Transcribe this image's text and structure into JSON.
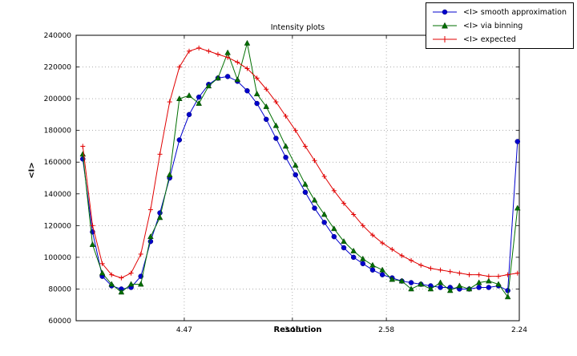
{
  "chart_data": {
    "type": "line",
    "title": "Intensity plots",
    "xlabel": "Resolution",
    "ylabel": "<I>",
    "grid": true,
    "grid_style": "dotted",
    "legend_position": "upper right, outside plot top corner",
    "ylim": [
      60000,
      240000
    ],
    "yticks": [
      60000,
      80000,
      100000,
      120000,
      140000,
      160000,
      180000,
      200000,
      220000,
      240000
    ],
    "xticks": [
      {
        "label": "4.47",
        "pos": 0.244
      },
      {
        "label": "3.16",
        "pos": 0.488
      },
      {
        "label": "2.58",
        "pos": 0.7
      },
      {
        "label": "2.24",
        "pos": 1.0
      }
    ],
    "x_axis_note": "x values are fractional positions across plot; resolution (Angstrom) decreases left to right",
    "x": [
      0.015,
      0.037,
      0.059,
      0.08,
      0.102,
      0.124,
      0.146,
      0.168,
      0.189,
      0.211,
      0.233,
      0.255,
      0.277,
      0.299,
      0.32,
      0.342,
      0.364,
      0.386,
      0.408,
      0.429,
      0.451,
      0.473,
      0.495,
      0.517,
      0.538,
      0.56,
      0.582,
      0.604,
      0.626,
      0.647,
      0.669,
      0.691,
      0.713,
      0.735,
      0.756,
      0.778,
      0.8,
      0.822,
      0.844,
      0.865,
      0.887,
      0.909,
      0.931,
      0.953,
      0.974,
      0.996
    ],
    "series": [
      {
        "name": "<I> smooth approximation",
        "color": "#0000cd",
        "marker": "circle",
        "values": [
          162000,
          116000,
          88000,
          82000,
          80000,
          81000,
          88000,
          110000,
          128000,
          150000,
          174000,
          190000,
          201000,
          209000,
          213000,
          214000,
          211000,
          205000,
          197000,
          187000,
          175000,
          163000,
          152000,
          141000,
          131000,
          122000,
          113000,
          106000,
          100000,
          96000,
          92000,
          89000,
          87000,
          85000,
          84000,
          83000,
          82000,
          81000,
          81000,
          80000,
          80000,
          81000,
          81000,
          82000,
          79000,
          173000
        ]
      },
      {
        "name": "<I> via binning",
        "color": "#006f00",
        "marker": "triangle",
        "values": [
          165000,
          108000,
          90000,
          83000,
          78000,
          83000,
          83000,
          113000,
          125000,
          152000,
          200000,
          202000,
          197000,
          208000,
          213000,
          229000,
          212000,
          235000,
          203000,
          195000,
          183000,
          170000,
          158000,
          146000,
          136000,
          127000,
          118000,
          110000,
          104000,
          99000,
          95000,
          92000,
          86000,
          85000,
          80000,
          83000,
          80000,
          84000,
          79000,
          82000,
          80000,
          84000,
          85000,
          83000,
          75000,
          131000
        ]
      },
      {
        "name": "<I> expected",
        "color": "#e00000",
        "marker": "plus",
        "values": [
          170000,
          120000,
          96000,
          89000,
          87000,
          90000,
          102000,
          130000,
          165000,
          198000,
          220000,
          230000,
          232000,
          230000,
          228000,
          226000,
          223000,
          219000,
          213000,
          206000,
          198000,
          189000,
          180000,
          170000,
          161000,
          151000,
          142000,
          134000,
          127000,
          120000,
          114000,
          109000,
          105000,
          101000,
          98000,
          95000,
          93000,
          92000,
          91000,
          90000,
          89000,
          89000,
          88000,
          88000,
          89000,
          90000
        ]
      }
    ]
  }
}
